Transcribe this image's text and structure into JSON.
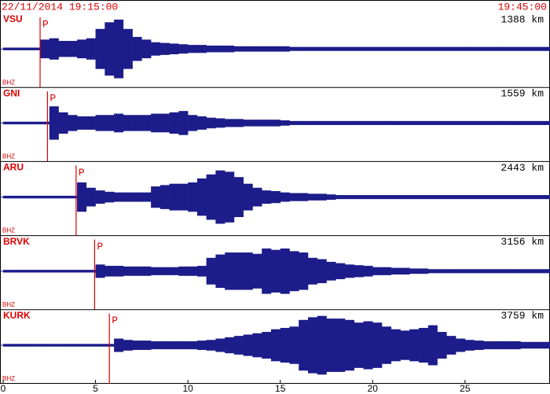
{
  "chart_data": {
    "type": "seismogram",
    "title_left": "22/11/2014 19:15:00",
    "title_right": "19:45:00",
    "xlim": [
      0,
      29.6
    ],
    "xticks": [
      0,
      5,
      10,
      15,
      20,
      25
    ],
    "ylim": [
      -50,
      50
    ],
    "color": "#1c1c8a",
    "marker_color": "#dd0000",
    "x": [
      0,
      0.5,
      1,
      1.5,
      2,
      2.5,
      3,
      3.5,
      4,
      4.5,
      5,
      5.5,
      6,
      6.5,
      7,
      7.5,
      8,
      8.5,
      9,
      9.5,
      10,
      10.5,
      11,
      11.5,
      12,
      12.5,
      13,
      13.5,
      14,
      14.5,
      15,
      15.5,
      16,
      16.5,
      17,
      17.5,
      18,
      18.5,
      19,
      19.5,
      20,
      20.5,
      21,
      21.5,
      22,
      22.5,
      23,
      23.5,
      24,
      24.5,
      25,
      25.5,
      26,
      26.5,
      27,
      27.5,
      28,
      28.5,
      29,
      29.5
    ],
    "series": [
      {
        "name": "VSU",
        "distance": "1388 km",
        "channel": "BHZ",
        "phase": "P",
        "phase_time": 2.0,
        "values": [
          2,
          2,
          2,
          2,
          14,
          16,
          12,
          12,
          14,
          16,
          30,
          40,
          44,
          30,
          18,
          14,
          10,
          9,
          8,
          7,
          6,
          6,
          5,
          5,
          5,
          4,
          4,
          4,
          4,
          4,
          4,
          3,
          3,
          3,
          3,
          3,
          3,
          3,
          3,
          3,
          3,
          3,
          3,
          3,
          3,
          3,
          3,
          3,
          3,
          3,
          3,
          3,
          3,
          3,
          3,
          3,
          3,
          3,
          3,
          3
        ]
      },
      {
        "name": "GNI",
        "distance": "1559 km",
        "channel": "BHZ",
        "phase": "P",
        "phase_time": 2.4,
        "values": [
          2,
          2,
          2,
          2,
          2,
          25,
          16,
          12,
          10,
          10,
          12,
          12,
          14,
          12,
          12,
          12,
          14,
          14,
          16,
          18,
          12,
          10,
          8,
          7,
          6,
          6,
          5,
          5,
          5,
          5,
          4,
          3,
          3,
          3,
          3,
          3,
          3,
          3,
          3,
          3,
          3,
          3,
          3,
          3,
          3,
          3,
          3,
          3,
          3,
          3,
          3,
          3,
          3,
          3,
          3,
          3,
          3,
          3,
          3,
          3
        ]
      },
      {
        "name": "ARU",
        "distance": "2443 km",
        "channel": "BHZ",
        "phase": "P",
        "phase_time": 3.95,
        "values": [
          2,
          2,
          2,
          2,
          2,
          2,
          2,
          2,
          22,
          14,
          10,
          8,
          7,
          7,
          7,
          7,
          16,
          18,
          20,
          20,
          22,
          28,
          34,
          40,
          38,
          30,
          20,
          14,
          10,
          9,
          7,
          6,
          6,
          5,
          5,
          4,
          3,
          3,
          3,
          3,
          3,
          3,
          3,
          3,
          3,
          3,
          3,
          3,
          3,
          3,
          3,
          3,
          3,
          3,
          3,
          3,
          3,
          3,
          3,
          3
        ]
      },
      {
        "name": "BRVK",
        "distance": "3156 km",
        "channel": "BHZ",
        "phase": "P",
        "phase_time": 4.95,
        "values": [
          2,
          2,
          2,
          2,
          2,
          2,
          2,
          2,
          2,
          2,
          10,
          8,
          8,
          7,
          7,
          7,
          6,
          6,
          6,
          7,
          7,
          8,
          20,
          25,
          28,
          28,
          28,
          26,
          34,
          32,
          34,
          30,
          28,
          20,
          18,
          14,
          12,
          10,
          9,
          8,
          6,
          6,
          5,
          5,
          4,
          4,
          3,
          3,
          3,
          3,
          3,
          3,
          3,
          3,
          3,
          3,
          3,
          3,
          3,
          3
        ]
      },
      {
        "name": "KURK",
        "distance": "3759 km",
        "channel": "BHZ",
        "phase": "P",
        "phase_time": 5.75,
        "values": [
          2,
          2,
          2,
          2,
          2,
          2,
          2,
          2,
          2,
          2,
          2,
          2,
          10,
          8,
          7,
          7,
          6,
          6,
          6,
          6,
          6,
          7,
          8,
          10,
          12,
          14,
          16,
          18,
          20,
          24,
          26,
          28,
          38,
          42,
          44,
          40,
          40,
          38,
          34,
          36,
          34,
          28,
          24,
          22,
          24,
          26,
          30,
          20,
          14,
          10,
          8,
          7,
          6,
          6,
          6,
          6,
          5,
          5,
          5,
          5
        ]
      }
    ]
  }
}
